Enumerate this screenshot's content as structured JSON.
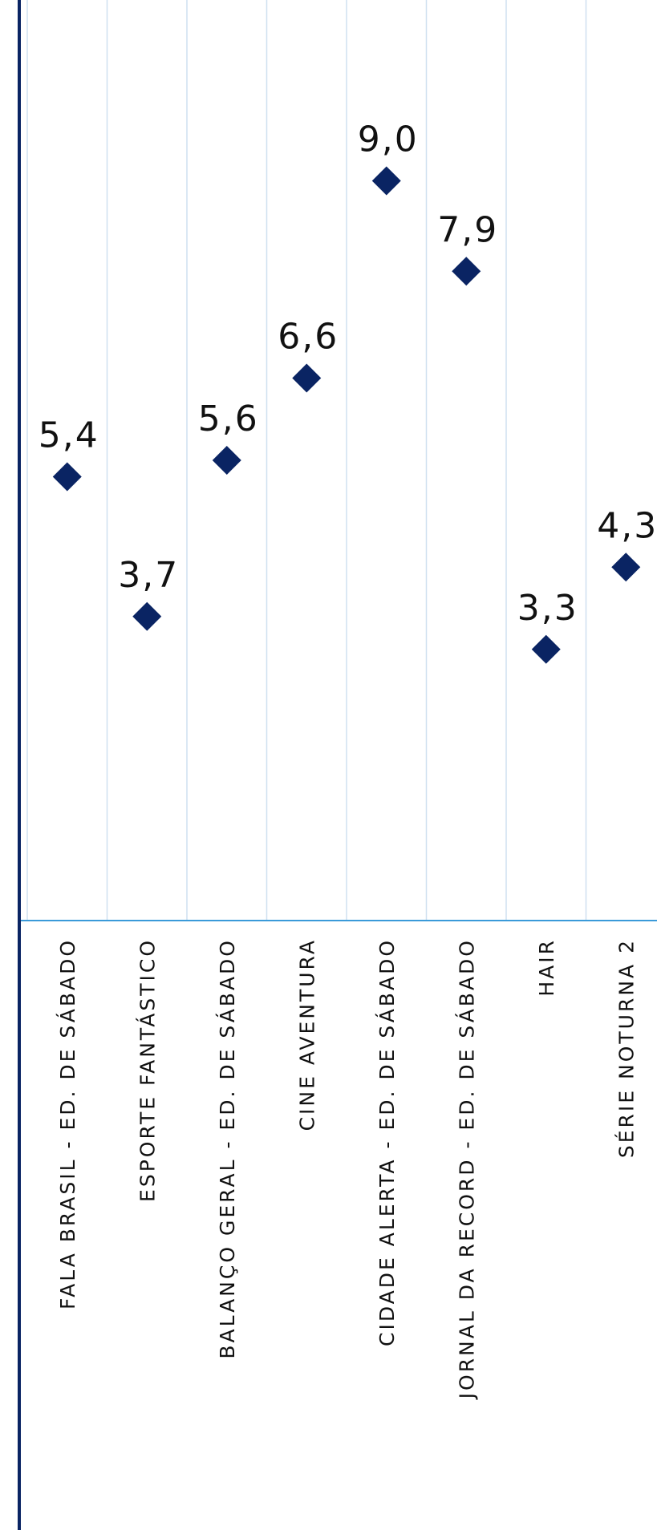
{
  "chart_data": {
    "type": "scatter",
    "categories": [
      "FALA BRASIL - ED. DE SÁBADO",
      "ESPORTE FANTÁSTICO",
      "BALANÇO GERAL - ED. DE SÁBADO",
      "CINE AVENTURA",
      "CIDADE ALERTA - ED. DE SÁBADO",
      "JORNAL DA RECORD - ED. DE SÁBADO",
      "HAIR",
      "SÉRIE NOTURNA 2"
    ],
    "values": [
      5.4,
      3.7,
      5.6,
      6.6,
      9.0,
      7.9,
      3.3,
      4.3
    ],
    "value_labels": [
      "5,4",
      "3,7",
      "5,6",
      "6,6",
      "9,0",
      "7,9",
      "3,3",
      "4,3"
    ],
    "ylim": [
      0,
      11.2
    ],
    "grid": true,
    "colors": {
      "marker": "#0a2463",
      "value_text": "#111111",
      "tick_text": "#111111",
      "grid": "#cfe0f0",
      "baseline": "#3a9ad9",
      "left_axis": "#0a2463"
    }
  }
}
